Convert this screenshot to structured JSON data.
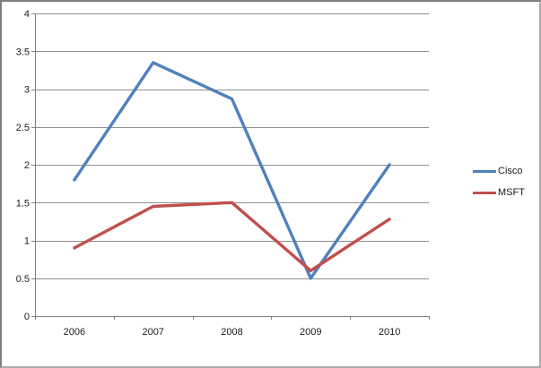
{
  "chart_data": {
    "type": "line",
    "title": "",
    "xlabel": "",
    "ylabel": "",
    "categories": [
      "2006",
      "2007",
      "2008",
      "2009",
      "2010"
    ],
    "series": [
      {
        "name": "Cisco",
        "color": "#4F81BD",
        "values": [
          1.8,
          3.35,
          2.87,
          0.5,
          2.0
        ]
      },
      {
        "name": "MSFT",
        "color": "#C0504D",
        "values": [
          0.9,
          1.45,
          1.5,
          0.6,
          1.28
        ]
      }
    ],
    "ylim": [
      0,
      4
    ],
    "ytick_step": 0.5,
    "y_tick_labels": [
      "0",
      "0.5",
      "1",
      "1.5",
      "2",
      "2.5",
      "3",
      "3.5",
      "4"
    ],
    "grid": true,
    "legend_position": "right",
    "colors": {
      "grid_line": "#909090",
      "axis_line": "#808080",
      "text": "#1a1a1a",
      "background": "#ffffff"
    }
  }
}
